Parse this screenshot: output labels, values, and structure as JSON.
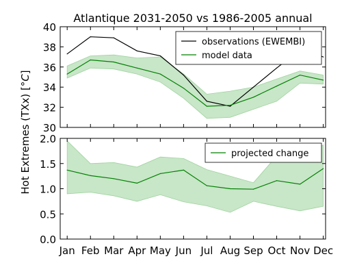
{
  "chart_data": {
    "title": "Atlantique 2031-2050 vs 1986-2005 annual",
    "ylabel": "Hot Extremes (TXx) [$^\\circ C$]",
    "ylabel_main": "Hot Extremes (TXx) [",
    "ylabel_unit": "°C",
    "ylabel_close": "]",
    "categories": [
      "Jan",
      "Feb",
      "Mar",
      "Apr",
      "May",
      "Jun",
      "Jul",
      "Aug",
      "Sep",
      "Oct",
      "Nov",
      "Dec"
    ],
    "panels": [
      {
        "type": "line",
        "ylim": [
          30,
          40
        ],
        "yticks": [
          "30",
          "32",
          "34",
          "36",
          "38",
          "40"
        ],
        "legend_position": "top-right",
        "series": [
          {
            "name": "observations (EWEMBI)",
            "color": "#000000",
            "values": [
              37.3,
              39.0,
              38.9,
              37.6,
              37.1,
              35.2,
              32.6,
              32.1,
              34.0,
              35.9,
              37.7,
              37.0
            ]
          },
          {
            "name": "model data",
            "color": "#008000",
            "values": [
              35.3,
              36.7,
              36.5,
              35.9,
              35.3,
              33.9,
              32.1,
              32.2,
              33.0,
              34.1,
              35.2,
              34.7
            ],
            "band_low": [
              34.9,
              35.9,
              35.8,
              35.3,
              34.5,
              32.9,
              30.9,
              31.0,
              31.8,
              32.6,
              34.4,
              34.3
            ],
            "band_high": [
              36.1,
              37.1,
              37.2,
              36.9,
              37.0,
              35.3,
              33.3,
              33.6,
              34.0,
              34.8,
              35.6,
              35.2
            ]
          }
        ]
      },
      {
        "type": "line",
        "ylim": [
          0,
          2
        ],
        "yticks": [
          "0.0",
          "0.5",
          "1.0",
          "1.5",
          "2.0"
        ],
        "legend_position": "top-right",
        "series": [
          {
            "name": "projected change",
            "color": "#008000",
            "values": [
              1.37,
              1.26,
              1.2,
              1.11,
              1.3,
              1.37,
              1.06,
              1.0,
              0.99,
              1.16,
              1.09,
              1.4
            ],
            "band_low": [
              0.9,
              0.93,
              0.86,
              0.75,
              0.88,
              0.74,
              0.66,
              0.53,
              0.75,
              0.65,
              0.56,
              0.65
            ],
            "band_high": [
              1.95,
              1.5,
              1.52,
              1.43,
              1.63,
              1.6,
              1.38,
              1.25,
              1.12,
              1.65,
              1.57,
              1.87
            ]
          }
        ]
      }
    ],
    "colors": {
      "band": "#c8e6c8",
      "band_stroke": "#9fd39f"
    }
  }
}
